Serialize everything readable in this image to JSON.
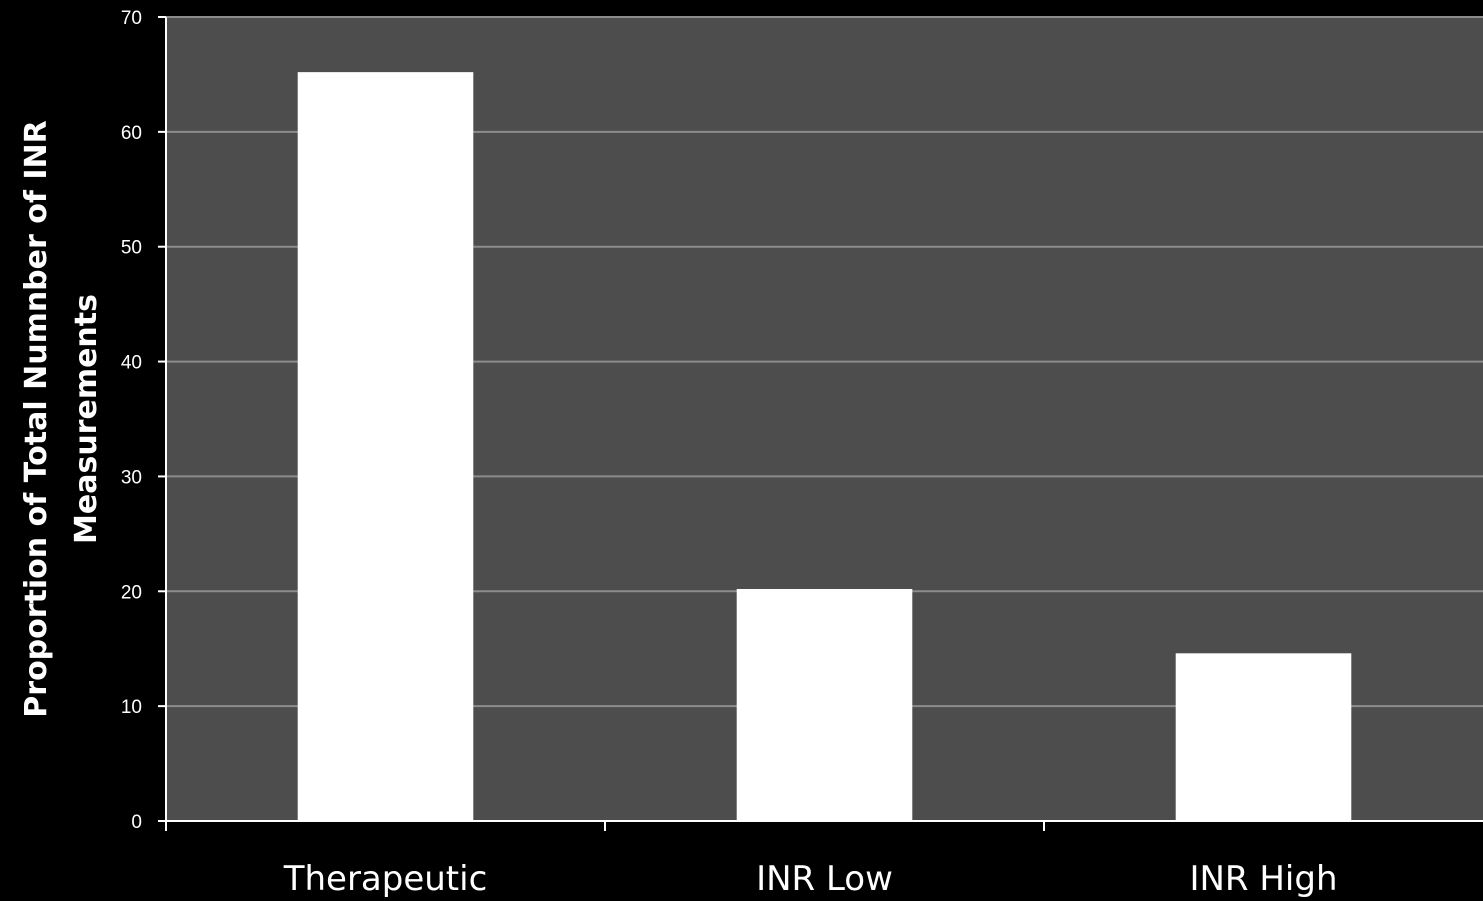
{
  "chart_data": {
    "type": "bar",
    "categories": [
      "Therapeutic",
      "INR Low",
      "INR High"
    ],
    "values": [
      65.2,
      20.2,
      14.6
    ],
    "title": "",
    "xlabel": "",
    "ylabel": [
      "Proportion of Total Numnber of INR",
      "Measurements"
    ],
    "ylim": [
      0,
      70
    ],
    "yticks": [
      0,
      10,
      20,
      30,
      40,
      50,
      60,
      70
    ],
    "grid": true,
    "legend": "none",
    "colors": {
      "page_background": "#000000",
      "plot_background": "#4d4d4d",
      "bar_fill": "#ffffff",
      "gridline": "#8c8c8c",
      "axis": "#ffffff",
      "text": "#ffffff"
    }
  }
}
